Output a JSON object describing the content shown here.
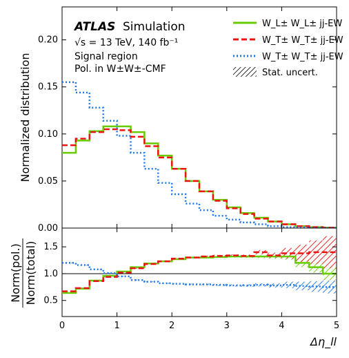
{
  "annotations": {
    "experiment": "ATLAS",
    "subtitle": "Simulation",
    "energy": "√s = 13 TeV, 140 fb⁻¹",
    "region": "Signal region",
    "pol_frame": "Pol. in W±W±-CMF"
  },
  "chart_data": [
    {
      "type": "line",
      "subtype": "histogram-step",
      "xlabel": "Δη_ll",
      "ylabel": "Normalized distribution",
      "xlim": [
        0,
        5
      ],
      "ylim": [
        0,
        0.235
      ],
      "x_ticks": [
        "0",
        "1",
        "2",
        "3",
        "4",
        "5"
      ],
      "y_ticks": [
        "0.00",
        "0.05",
        "0.10",
        "0.15",
        "0.20"
      ],
      "bin_edges": [
        0,
        0.25,
        0.5,
        0.75,
        1.0,
        1.25,
        1.5,
        1.75,
        2.0,
        2.25,
        2.5,
        2.75,
        3.0,
        3.25,
        3.5,
        3.75,
        4.0,
        4.25,
        4.5,
        4.75,
        5.0
      ],
      "legend_placement": "top-right",
      "series": [
        {
          "name": "W_L± W_L± jj-EW",
          "color": "#66cc00",
          "style": "solid",
          "values": [
            0.08,
            0.093,
            0.103,
            0.108,
            0.108,
            0.102,
            0.09,
            0.077,
            0.063,
            0.05,
            0.039,
            0.03,
            0.022,
            0.016,
            0.011,
            0.007,
            0.004,
            0.002,
            0.001,
            0.0005
          ]
        },
        {
          "name": "W_T± W_T± jj-EW",
          "color": "#ee1111",
          "style": "dashed",
          "values": [
            0.088,
            0.095,
            0.102,
            0.105,
            0.104,
            0.097,
            0.087,
            0.075,
            0.063,
            0.05,
            0.039,
            0.029,
            0.021,
            0.015,
            0.01,
            0.007,
            0.004,
            0.002,
            0.001,
            0.0005
          ]
        },
        {
          "name": "W_T± W_T± jj-EW",
          "color": "#1f77e8",
          "style": "dotted",
          "values": [
            0.155,
            0.144,
            0.128,
            0.114,
            0.098,
            0.08,
            0.063,
            0.048,
            0.036,
            0.026,
            0.019,
            0.013,
            0.009,
            0.006,
            0.004,
            0.002,
            0.001,
            0.0007,
            0.0004,
            0.0002
          ]
        }
      ],
      "uncertainty_legend": "Stat. uncert."
    },
    {
      "type": "line",
      "subtype": "histogram-step-ratio",
      "xlabel": "Δη_ll",
      "ylabel_numerator": "Norm(pol.)",
      "ylabel_denominator": "Norm(total)",
      "xlim": [
        0,
        5
      ],
      "ylim": [
        0.2,
        1.85
      ],
      "y_ticks": [
        "0.5",
        "1.0",
        "1.5"
      ],
      "reference_line": 1.0,
      "series": [
        {
          "name": "W_L± W_L± jj-EW",
          "color": "#66cc00",
          "style": "solid",
          "values": [
            0.64,
            0.72,
            0.87,
            0.96,
            1.04,
            1.12,
            1.19,
            1.23,
            1.27,
            1.3,
            1.3,
            1.31,
            1.32,
            1.32,
            1.32,
            1.32,
            1.32,
            1.2,
            1.12,
            1.0
          ],
          "unc": [
            0.01,
            0.01,
            0.01,
            0.01,
            0.01,
            0.01,
            0.01,
            0.01,
            0.01,
            0.01,
            0.01,
            0.015,
            0.02,
            0.025,
            0.03,
            0.04,
            0.06,
            0.08,
            0.1,
            0.12
          ]
        },
        {
          "name": "W_T± W_T± jj-EW",
          "color": "#ee1111",
          "style": "dashed",
          "values": [
            0.67,
            0.73,
            0.86,
            0.94,
            1.02,
            1.1,
            1.18,
            1.23,
            1.28,
            1.3,
            1.32,
            1.33,
            1.34,
            1.33,
            1.4,
            1.34,
            1.38,
            1.38,
            1.4,
            1.4
          ],
          "unc": [
            0.01,
            0.01,
            0.01,
            0.01,
            0.01,
            0.01,
            0.01,
            0.01,
            0.01,
            0.01,
            0.015,
            0.02,
            0.02,
            0.025,
            0.04,
            0.05,
            0.1,
            0.16,
            0.22,
            0.3
          ]
        },
        {
          "name": "W_T± W_T± jj-EW",
          "color": "#1f77e8",
          "style": "dotted",
          "values": [
            1.2,
            1.16,
            1.08,
            1.01,
            0.95,
            0.88,
            0.85,
            0.82,
            0.81,
            0.8,
            0.8,
            0.79,
            0.78,
            0.78,
            0.79,
            0.78,
            0.79,
            0.77,
            0.76,
            0.75
          ],
          "unc": [
            0.01,
            0.01,
            0.01,
            0.01,
            0.01,
            0.01,
            0.01,
            0.01,
            0.01,
            0.015,
            0.015,
            0.02,
            0.02,
            0.025,
            0.03,
            0.04,
            0.06,
            0.08,
            0.1,
            0.12
          ]
        }
      ]
    }
  ]
}
